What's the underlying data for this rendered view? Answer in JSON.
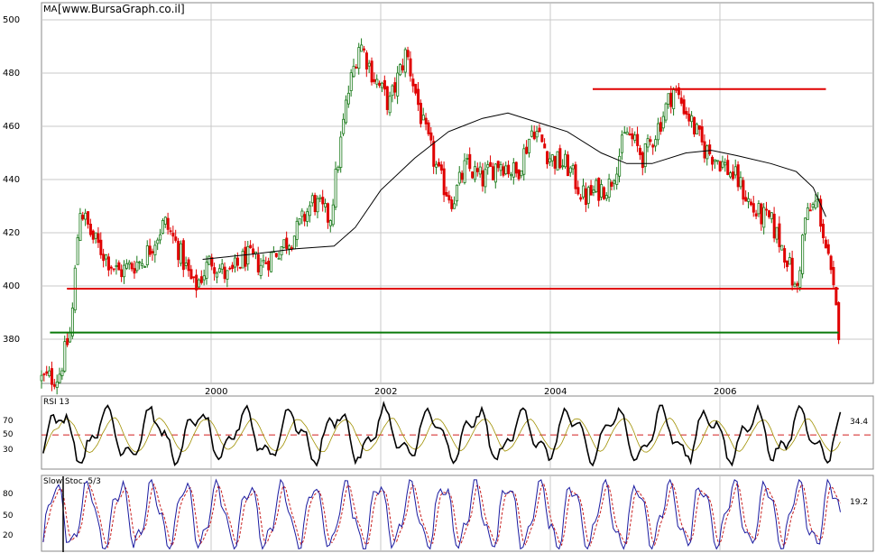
{
  "chart_data": [
    {
      "type": "candlestick",
      "panel": "price",
      "label": "MA",
      "watermark": "[www.BursaGraph.co.il]",
      "ylim": [
        355,
        506
      ],
      "xlim": [
        1998.0,
        2007.6
      ],
      "y_ticks": [
        "500",
        "480",
        "460",
        "440",
        "420",
        "400",
        "380"
      ],
      "x_ticks": [
        "2000",
        "2002",
        "2004",
        "2006"
      ],
      "grid": true,
      "colors": {
        "up": "#1a7a1a",
        "down": "#e00000",
        "ma": "#000000",
        "resistance": "#e00000",
        "support": "#0a7a0a"
      },
      "close_path": {
        "x": [
          1998.0,
          1998.2,
          1998.35,
          1998.45,
          1998.6,
          1998.9,
          1999.2,
          1999.45,
          1999.6,
          1999.8,
          2000.0,
          2000.2,
          2000.4,
          2000.6,
          2000.8,
          2001.0,
          2001.2,
          2001.4,
          2001.6,
          2001.75,
          2001.9,
          2002.1,
          2002.3,
          2002.5,
          2002.7,
          2002.85,
          2003.0,
          2003.2,
          2003.4,
          2003.6,
          2003.8,
          2004.0,
          2004.2,
          2004.4,
          2004.55,
          2004.7,
          2004.9,
          2005.1,
          2005.3,
          2005.45,
          2005.6,
          2005.8,
          2006.0,
          2006.2,
          2006.4,
          2006.6,
          2006.8,
          2006.9,
          2007.0,
          2007.15,
          2007.3,
          2007.4
        ],
        "y": [
          365,
          366,
          384,
          430,
          418,
          405,
          410,
          424,
          415,
          399,
          410,
          403,
          411,
          408,
          414,
          420,
          432,
          425,
          470,
          492,
          480,
          468,
          488,
          460,
          440,
          432,
          445,
          440,
          447,
          442,
          460,
          448,
          445,
          433,
          436,
          438,
          458,
          448,
          462,
          474,
          466,
          452,
          447,
          440,
          428,
          424,
          410,
          396,
          425,
          432,
          405,
          384
        ]
      },
      "moving_average": {
        "x": [
          1999.9,
          2000.5,
          2001.0,
          2001.45,
          2001.7,
          2002.0,
          2002.4,
          2002.8,
          2003.2,
          2003.5,
          2003.8,
          2004.2,
          2004.6,
          2004.9,
          2005.2,
          2005.6,
          2005.9,
          2006.2,
          2006.6,
          2006.9,
          2007.1,
          2007.25
        ],
        "y": [
          410,
          412,
          414,
          415,
          422,
          436,
          448,
          458,
          463,
          465,
          462,
          458,
          450,
          446,
          446,
          450,
          451,
          449,
          446,
          443,
          437,
          426
        ]
      },
      "resistance_line": {
        "x": [
          2004.5,
          2007.25
        ],
        "y": 474
      },
      "mid_line": {
        "x": [
          1998.3,
          2007.4
        ],
        "y": 399
      },
      "support_line": {
        "x": [
          1998.1,
          2007.4
        ],
        "y": 382.5
      }
    },
    {
      "type": "line",
      "panel": "indicator",
      "label": "RSI 13",
      "ylim": [
        15,
        90
      ],
      "y_ticks": [
        "70",
        "50",
        "30"
      ],
      "reference": 50,
      "last_value": "34.4",
      "series_colors": [
        "#000000",
        "#a09000"
      ]
    },
    {
      "type": "line",
      "panel": "indicator",
      "label": "Slow Stoc. 5/3",
      "ylim": [
        0,
        105
      ],
      "y_ticks": [
        "80",
        "50",
        "20"
      ],
      "last_value": "19.2",
      "series_colors": [
        "#1a1aa0",
        "#c81e1e"
      ]
    }
  ]
}
